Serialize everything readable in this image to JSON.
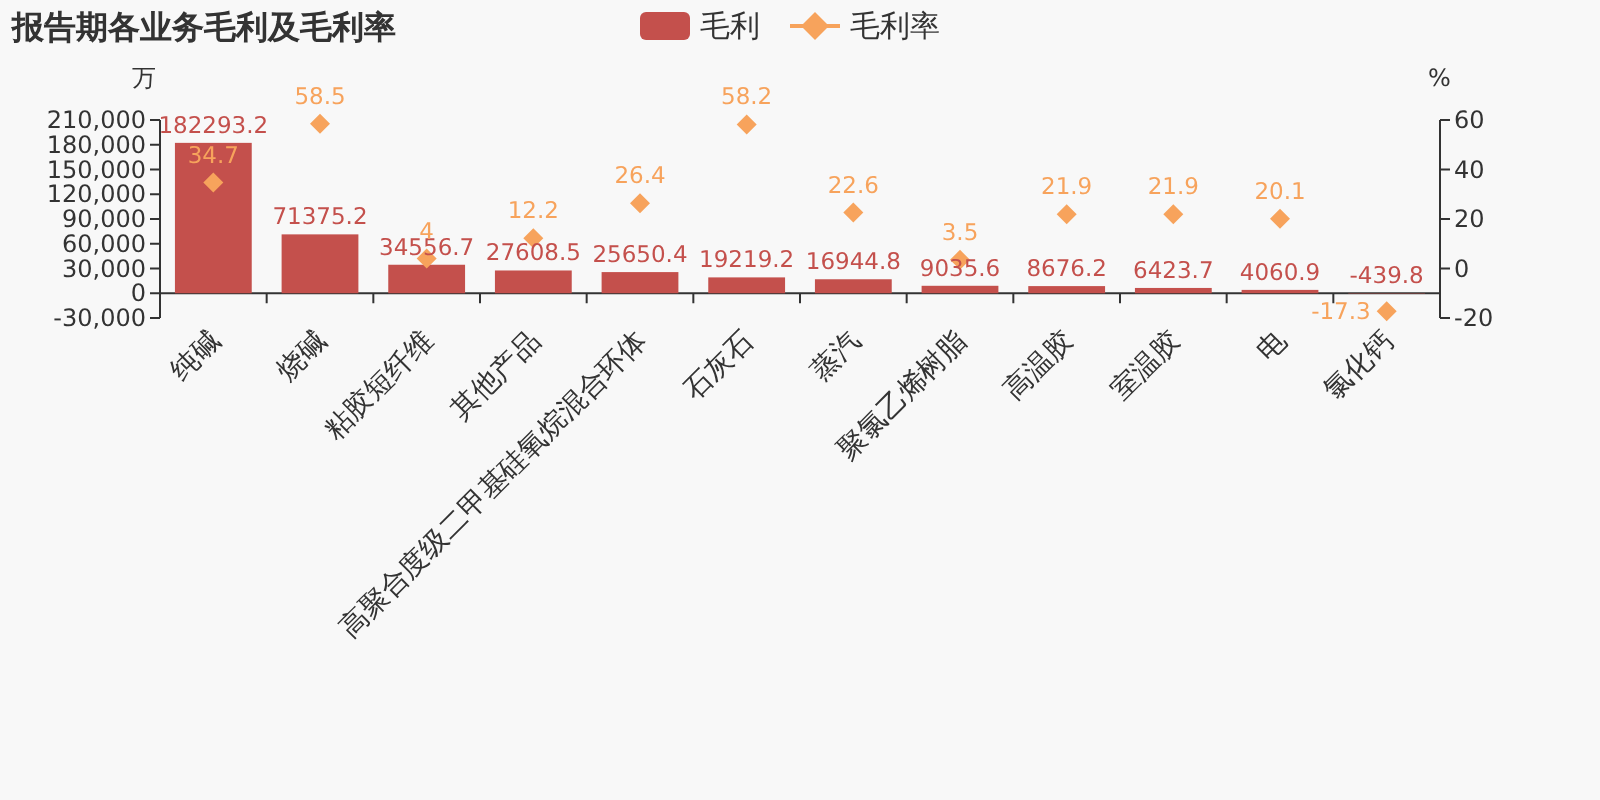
{
  "chart_data": {
    "type": "bar",
    "title": "报告期各业务毛利及毛利率",
    "ylabel": "万",
    "y2label": "%",
    "categories": [
      "纯碱",
      "烧碱",
      "粘胶短纤维",
      "其他产品",
      "高聚合度级二甲基硅氧烷混合环体",
      "石灰石",
      "蒸汽",
      "聚氯乙烯树脂",
      "高温胶",
      "室温胶",
      "电",
      "氯化钙"
    ],
    "series": [
      {
        "name": "毛利",
        "type": "bar",
        "color": "#c4504c",
        "values": [
          182293.2,
          71375.2,
          34556.7,
          27608.5,
          25650.4,
          19219.2,
          16944.8,
          9035.6,
          8676.2,
          6423.7,
          4060.9,
          -439.8
        ]
      },
      {
        "name": "毛利率",
        "type": "scatter",
        "axis": "y2",
        "marker": "diamond",
        "color": "#f7a35c",
        "values": [
          34.7,
          58.5,
          4,
          12.2,
          26.4,
          58.2,
          22.6,
          3.5,
          21.9,
          21.9,
          20.1,
          -17.3
        ]
      }
    ],
    "ylim": [
      -30000,
      210000
    ],
    "yticks": [
      {
        "value": -30000,
        "label": "-30,000"
      },
      0,
      {
        "value": 30000,
        "label": "30,000"
      },
      {
        "value": 60000,
        "label": "60,000"
      },
      {
        "value": 90000,
        "label": "90,000"
      },
      {
        "value": 120000,
        "label": "120,000"
      },
      {
        "value": 150000,
        "label": "150,000"
      },
      {
        "value": 180000,
        "label": "180,000"
      },
      {
        "value": 210000,
        "label": "210,000"
      }
    ],
    "y2lim": [
      -20,
      60
    ],
    "y2ticks": [
      -20,
      0,
      20,
      40,
      60
    ],
    "data_labels": true,
    "legend": "top",
    "grid": false
  }
}
